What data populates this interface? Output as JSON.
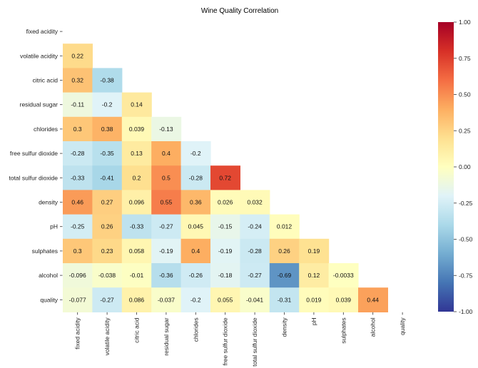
{
  "chart_data": {
    "type": "heatmap",
    "title": "Wine Quality Correlation",
    "xlabel": "",
    "ylabel": "",
    "labels": [
      "fixed acidity",
      "volatile acidity",
      "citric acid",
      "residual sugar",
      "chlorides",
      "free sulfur dioxide",
      "total sulfur dioxide",
      "density",
      "pH",
      "sulphates",
      "alcohol",
      "quality"
    ],
    "mask": "upper triangle including diagonal",
    "matrix": [
      [
        null,
        null,
        null,
        null,
        null,
        null,
        null,
        null,
        null,
        null,
        null,
        null
      ],
      [
        "0.22",
        null,
        null,
        null,
        null,
        null,
        null,
        null,
        null,
        null,
        null,
        null
      ],
      [
        "0.32",
        "-0.38",
        null,
        null,
        null,
        null,
        null,
        null,
        null,
        null,
        null,
        null
      ],
      [
        "-0.11",
        "-0.2",
        "0.14",
        null,
        null,
        null,
        null,
        null,
        null,
        null,
        null,
        null
      ],
      [
        "0.3",
        "0.38",
        "0.039",
        "-0.13",
        null,
        null,
        null,
        null,
        null,
        null,
        null,
        null
      ],
      [
        "-0.28",
        "-0.35",
        "0.13",
        "0.4",
        "-0.2",
        null,
        null,
        null,
        null,
        null,
        null,
        null
      ],
      [
        "-0.33",
        "-0.41",
        "0.2",
        "0.5",
        "-0.28",
        "0.72",
        null,
        null,
        null,
        null,
        null,
        null
      ],
      [
        "0.46",
        "0.27",
        "0.096",
        "0.55",
        "0.36",
        "0.026",
        "0.032",
        null,
        null,
        null,
        null,
        null
      ],
      [
        "-0.25",
        "0.26",
        "-0.33",
        "-0.27",
        "0.045",
        "-0.15",
        "-0.24",
        "0.012",
        null,
        null,
        null,
        null
      ],
      [
        "0.3",
        "0.23",
        "0.058",
        "-0.19",
        "0.4",
        "-0.19",
        "-0.28",
        "0.26",
        "0.19",
        null,
        null,
        null
      ],
      [
        "-0.096",
        "-0.038",
        "-0.01",
        "-0.36",
        "-0.26",
        "-0.18",
        "-0.27",
        "-0.69",
        "0.12",
        "-0.0033",
        null,
        null
      ],
      [
        "-0.077",
        "-0.27",
        "0.086",
        "-0.037",
        "-0.2",
        "0.055",
        "-0.041",
        "-0.31",
        "0.019",
        "0.039",
        "0.44",
        null
      ]
    ],
    "colorbar": {
      "colormap": "RdYlBu_r",
      "range": [
        -1,
        1
      ],
      "ticks": [
        "1.00",
        "0.75",
        "0.50",
        "0.25",
        "0.00",
        "-0.25",
        "-0.50",
        "-0.75",
        "-1.00"
      ]
    },
    "grid": false
  }
}
